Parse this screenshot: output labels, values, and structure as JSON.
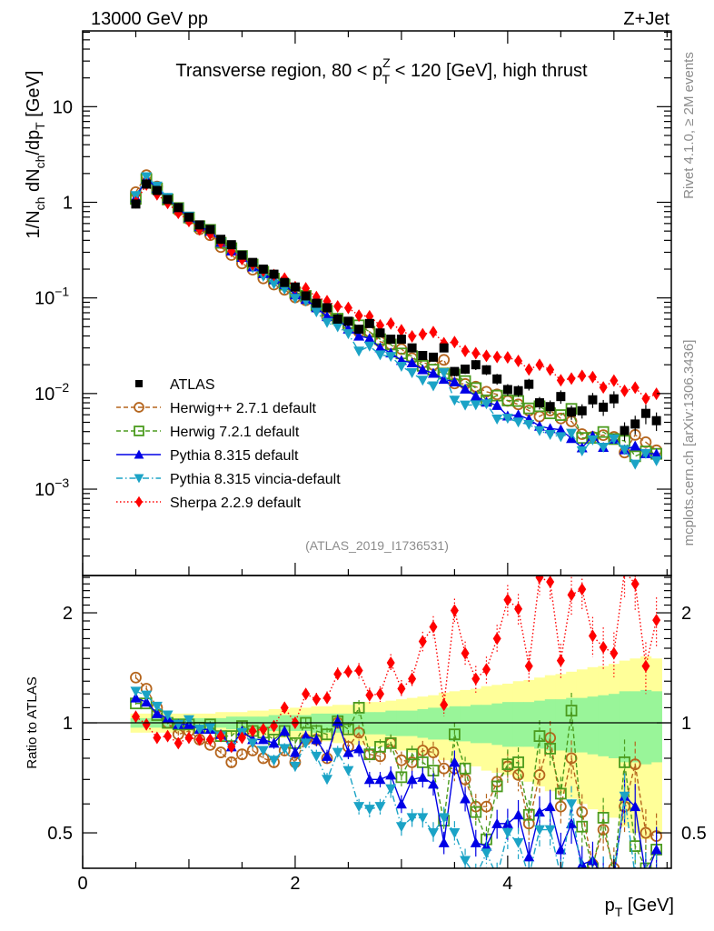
{
  "header": {
    "left": "13000 GeV pp",
    "right": "Z+Jet"
  },
  "side_labels": {
    "rivet": "Rivet 4.1.0, ≥ 2M events",
    "mcplots": "mcplots.cern.ch [arXiv:1306.3436]"
  },
  "chart_data": {
    "type": "line",
    "title": "Transverse region, 80 < p_T^Z < 120 [GeV], high thrust",
    "title_parts": {
      "pre": "Transverse region, 80 < p",
      "sup": "Z",
      "sub": "T",
      "post": " < 120 [GeV], high thrust"
    },
    "analysis_id": "(ATLAS_2019_I1736531)",
    "xlabel": "p_T [GeV]",
    "xlabel_parts": {
      "main": "p",
      "sub": "T",
      "unit": " [GeV]"
    },
    "ylabel": "1/N_ch dN_ch/dp_T [GeV]",
    "ylabel_parts": {
      "a": "1/N",
      "a_sub": "ch",
      "b": " dN",
      "b_sub": "ch",
      "c": "/dp",
      "c_sub": "T",
      "d": " [GeV]"
    },
    "ratio_ylabel": "Ratio to ATLAS",
    "xlim": [
      0,
      5.54
    ],
    "ylim": [
      0.000125,
      62
    ],
    "yscale": "log",
    "ratio_ylim": [
      0.4,
      2.53
    ],
    "ratio_yscale": "log",
    "xticks": [
      0,
      2,
      4
    ],
    "xtick_labels": [
      "0",
      "2",
      "4"
    ],
    "yticks": [
      10,
      1,
      0.1,
      0.01,
      0.001
    ],
    "ytick_labels": [
      {
        "base": "10",
        "exp": ""
      },
      {
        "base": "1",
        "exp": ""
      },
      {
        "base": "10",
        "exp": "−1"
      },
      {
        "base": "10",
        "exp": "−2"
      },
      {
        "base": "10",
        "exp": "−3"
      }
    ],
    "ratio_yticks": [
      0.5,
      1,
      2
    ],
    "ratio_ytick_labels": [
      "0.5",
      "1",
      "2"
    ],
    "legend_position": "center-left",
    "x": [
      0.5,
      0.6,
      0.7,
      0.8,
      0.9,
      1.0,
      1.1,
      1.2,
      1.3,
      1.4,
      1.5,
      1.6,
      1.7,
      1.8,
      1.9,
      2.0,
      2.1,
      2.2,
      2.3,
      2.4,
      2.5,
      2.6,
      2.7,
      2.8,
      2.9,
      3.0,
      3.1,
      3.2,
      3.3,
      3.4,
      3.5,
      3.6,
      3.7,
      3.8,
      3.9,
      4.0,
      4.1,
      4.2,
      4.3,
      4.4,
      4.5,
      4.6,
      4.7,
      4.8,
      4.9,
      5.0,
      5.1,
      5.2,
      5.3,
      5.4
    ],
    "data": {
      "name": "ATLAS",
      "color": "#000000",
      "marker": "square",
      "values": [
        0.96,
        1.55,
        1.33,
        1.07,
        0.88,
        0.7,
        0.58,
        0.52,
        0.41,
        0.36,
        0.28,
        0.235,
        0.2,
        0.177,
        0.145,
        0.13,
        0.105,
        0.088,
        0.079,
        0.06,
        0.057,
        0.047,
        0.054,
        0.043,
        0.037,
        0.037,
        0.03,
        0.025,
        0.024,
        0.03,
        0.017,
        0.018,
        0.02,
        0.0177,
        0.0142,
        0.011,
        0.0107,
        0.0125,
        0.008,
        0.0073,
        0.0093,
        0.0064,
        0.0066,
        0.0086,
        0.0072,
        0.0088,
        0.0041,
        0.0048,
        0.0062,
        0.0052
      ],
      "stat_rel_err": [
        0.03,
        0.03,
        0.03,
        0.03,
        0.03,
        0.03,
        0.03,
        0.03,
        0.03,
        0.04,
        0.04,
        0.04,
        0.04,
        0.05,
        0.05,
        0.05,
        0.05,
        0.06,
        0.06,
        0.06,
        0.06,
        0.07,
        0.07,
        0.07,
        0.08,
        0.08,
        0.08,
        0.09,
        0.1,
        0.1,
        0.11,
        0.11,
        0.12,
        0.12,
        0.13,
        0.14,
        0.14,
        0.14,
        0.15,
        0.16,
        0.16,
        0.17,
        0.17,
        0.18,
        0.19,
        0.2,
        0.22,
        0.22,
        0.23,
        0.22
      ],
      "total_rel_err": [
        0.06,
        0.06,
        0.06,
        0.06,
        0.06,
        0.06,
        0.06,
        0.06,
        0.07,
        0.07,
        0.07,
        0.08,
        0.08,
        0.09,
        0.09,
        0.1,
        0.1,
        0.11,
        0.11,
        0.12,
        0.12,
        0.13,
        0.14,
        0.14,
        0.15,
        0.16,
        0.17,
        0.18,
        0.19,
        0.21,
        0.22,
        0.23,
        0.24,
        0.26,
        0.27,
        0.28,
        0.3,
        0.31,
        0.33,
        0.35,
        0.36,
        0.38,
        0.4,
        0.42,
        0.43,
        0.45,
        0.48,
        0.5,
        0.52,
        0.5
      ]
    },
    "series": [
      {
        "name": "Herwig++ 2.7.1 default",
        "color": "#b5651d",
        "marker": "open-circle",
        "line": "dashed",
        "ratio": [
          1.33,
          1.24,
          1.1,
          1.0,
          0.93,
          0.95,
          0.9,
          0.87,
          0.83,
          0.78,
          0.82,
          0.84,
          0.8,
          0.78,
          0.84,
          0.78,
          0.9,
          0.9,
          0.8,
          1.0,
          0.86,
          0.94,
          0.82,
          0.81,
          0.88,
          0.79,
          0.78,
          0.84,
          0.83,
          0.75,
          0.75,
          0.7,
          0.59,
          0.59,
          0.69,
          0.76,
          0.72,
          0.53,
          0.72,
          0.91,
          0.59,
          0.8,
          0.57,
          0.41,
          0.51,
          0.4,
          0.59,
          0.77,
          0.5,
          0.49
        ]
      },
      {
        "name": "Herwig 7.2.1 default",
        "color": "#4b9b1e",
        "marker": "open-square",
        "line": "dashed",
        "ratio": [
          1.13,
          1.13,
          1.05,
          1.0,
          0.99,
          0.99,
          0.97,
          0.99,
          0.92,
          0.92,
          0.98,
          0.95,
          0.94,
          0.9,
          0.95,
          0.88,
          1.0,
          0.95,
          0.93,
          1.01,
          0.96,
          1.1,
          0.82,
          0.86,
          0.88,
          0.71,
          0.82,
          0.78,
          0.74,
          0.54,
          0.93,
          0.75,
          0.57,
          0.48,
          0.67,
          0.77,
          0.78,
          0.56,
          0.92,
          0.85,
          0.64,
          1.08,
          0.52,
          0.4,
          0.55,
          0.38,
          0.78,
          0.46,
          0.4,
          0.45
        ]
      },
      {
        "name": "Pythia 8.315 default",
        "color": "#0000e6",
        "marker": "triangle-up",
        "line": "solid",
        "ratio": [
          1.17,
          1.14,
          1.06,
          1.03,
          0.99,
          0.99,
          0.96,
          0.96,
          0.93,
          0.86,
          0.95,
          0.9,
          0.9,
          0.88,
          0.95,
          0.83,
          0.92,
          0.9,
          0.81,
          1.01,
          0.83,
          0.85,
          0.7,
          0.7,
          0.72,
          0.6,
          0.7,
          0.71,
          0.68,
          0.47,
          0.78,
          0.62,
          0.47,
          0.46,
          0.53,
          0.53,
          0.56,
          0.43,
          0.57,
          0.59,
          0.45,
          0.53,
          0.41,
          0.42,
          0.38,
          0.38,
          0.63,
          0.59,
          0.38,
          0.45
        ]
      },
      {
        "name": "Pythia 8.315 vincia-default",
        "color": "#1ba3c6",
        "marker": "triangle-down",
        "line": "dashdot",
        "ratio": [
          1.22,
          1.19,
          1.11,
          1.05,
          0.99,
          1.02,
          0.96,
          0.97,
          0.92,
          0.86,
          0.94,
          0.88,
          0.84,
          0.79,
          0.85,
          0.76,
          0.88,
          0.81,
          0.7,
          0.83,
          0.74,
          0.59,
          0.58,
          0.59,
          0.66,
          0.52,
          0.55,
          0.55,
          0.5,
          0.55,
          0.5,
          0.42,
          0.38,
          0.44,
          0.38,
          0.5,
          0.47,
          0.38,
          0.51,
          0.51,
          0.38,
          0.6,
          0.38,
          0.38,
          0.38,
          0.38,
          0.63,
          0.38,
          0.38,
          0.38
        ]
      },
      {
        "name": "Sherpa 2.2.9 default",
        "color": "#ff0000",
        "marker": "diamond",
        "line": "dotted",
        "ratio": [
          1.04,
          0.99,
          0.91,
          0.92,
          0.88,
          0.91,
          0.9,
          0.9,
          0.92,
          0.86,
          0.91,
          0.95,
          0.96,
          0.98,
          1.1,
          1.0,
          1.2,
          1.16,
          1.17,
          1.36,
          1.38,
          1.39,
          1.19,
          1.2,
          1.46,
          1.24,
          1.32,
          1.67,
          1.83,
          1.12,
          2.03,
          1.55,
          1.32,
          1.4,
          1.7,
          2.17,
          2.05,
          1.43,
          2.5,
          2.43,
          1.48,
          2.24,
          2.32,
          1.73,
          1.61,
          1.55,
          2.6,
          2.4,
          1.43,
          1.91
        ]
      }
    ]
  }
}
